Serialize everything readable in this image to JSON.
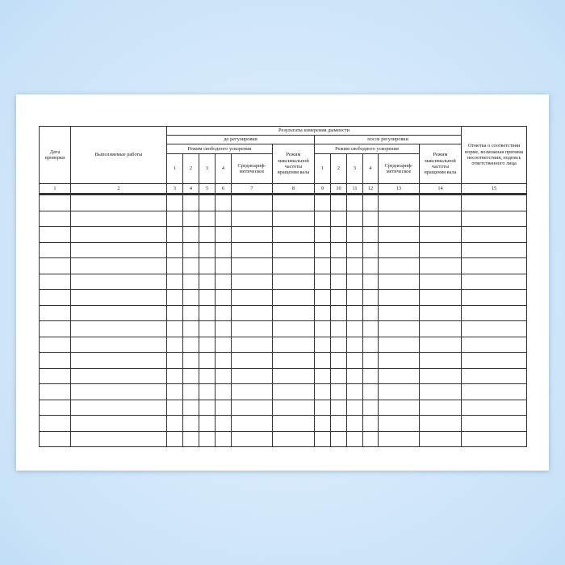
{
  "header": {
    "date": "Дата проверки",
    "works": "Выполняемые работы",
    "results": "Результаты измерения дымности",
    "before": "до регулировки",
    "after": "после регулировки",
    "free_accel": "Режим свободного ускорения",
    "max_rpm": "Режим максимальной частоты вращения вала",
    "mean": "Среднеариф-метическое",
    "sub_cols": [
      "1",
      "2",
      "3",
      "4"
    ],
    "note": "Отметка о соответствии норме, возможная причина несоответствия, подпись ответственного лица"
  },
  "column_numbers": [
    "1",
    "2",
    "3",
    "4",
    "5",
    "6",
    "7",
    "8",
    "9",
    "10",
    "11",
    "12",
    "13",
    "14",
    "15"
  ],
  "empty_rows": 16
}
